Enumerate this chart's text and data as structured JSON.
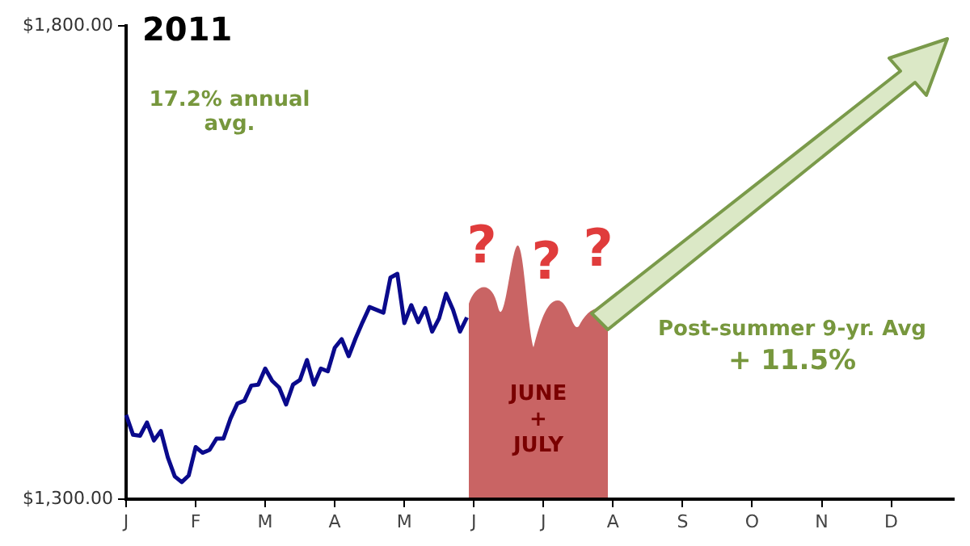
{
  "chart_data": {
    "type": "line",
    "title": "2011",
    "annotations": [
      "17.2% annual avg.",
      "Post-summer 9-yr. Avg",
      "+ 11.5%",
      "?",
      "?",
      "?",
      "JUNE + JULY"
    ],
    "categories": [
      "J",
      null,
      null,
      null,
      null,
      null,
      null,
      null,
      null,
      null,
      "F",
      null,
      null,
      null,
      null,
      null,
      null,
      null,
      null,
      null,
      "M",
      null,
      null,
      null,
      null,
      null,
      null,
      null,
      null,
      null,
      "A",
      null,
      null,
      null,
      null,
      null,
      null,
      null,
      null,
      null,
      "M",
      null,
      null,
      null,
      null,
      null,
      null,
      null,
      null,
      null,
      "J",
      null,
      null,
      null,
      null,
      null,
      null,
      null,
      null,
      null,
      "J",
      null,
      null,
      null,
      null,
      null,
      null,
      null,
      null,
      null,
      "A",
      null,
      null,
      null,
      null,
      null,
      null,
      null,
      null,
      null,
      "S",
      null,
      null,
      null,
      null,
      null,
      null,
      null,
      null,
      null,
      "O",
      null,
      null,
      null,
      null,
      null,
      null,
      null,
      null,
      null,
      "N",
      null,
      null,
      null,
      null,
      null,
      null,
      null,
      null,
      null,
      "D",
      null,
      null,
      null,
      null,
      null,
      null,
      null,
      null,
      null
    ],
    "series": [
      {
        "color": "#0a0a8c",
        "values": [
          1389,
          1368,
          1367,
          1381,
          1362,
          1372,
          1344,
          1324,
          1318,
          1325,
          1355,
          1349,
          1352,
          1364,
          1364,
          1385,
          1401,
          1404,
          1420,
          1421,
          1438,
          1425,
          1418,
          1400,
          1421,
          1426,
          1447,
          1421,
          1438,
          1435,
          1460,
          1469,
          1451,
          1470,
          1487,
          1503,
          1500,
          1497,
          1534,
          1538,
          1486,
          1505,
          1487,
          1502,
          1477,
          1491,
          1517,
          1500,
          1477,
          1492,
          null,
          null,
          null,
          null,
          null,
          null,
          null,
          null,
          null,
          null,
          null,
          null,
          null,
          null,
          null,
          null,
          null,
          null,
          null,
          null,
          null,
          null,
          null,
          null,
          null,
          null,
          null,
          null,
          null,
          null,
          null,
          null,
          null,
          null,
          null,
          null,
          null,
          null,
          null,
          null,
          null,
          null,
          null,
          null,
          null,
          null,
          null,
          null,
          null,
          null,
          null,
          null,
          null,
          null,
          null,
          null,
          null,
          null,
          null,
          null,
          null,
          null,
          null,
          null,
          null,
          null,
          null,
          null,
          null,
          null
        ]
      }
    ],
    "ylim": [
      1300,
      1800
    ],
    "yticks": [
      {
        "value": 1300,
        "label": "$1,300.00"
      },
      {
        "value": 1800,
        "label": "$1,800.00"
      }
    ],
    "grid": false,
    "legend": false,
    "marker": "none",
    "line_style": "solid"
  }
}
